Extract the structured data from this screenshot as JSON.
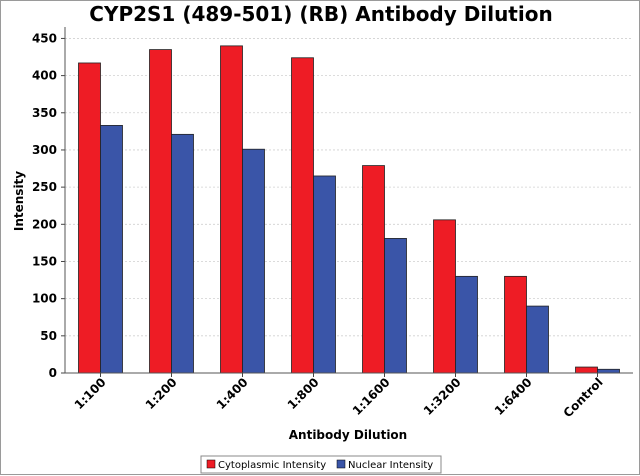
{
  "chart_data": {
    "type": "bar",
    "title": "CYP2S1 (489-501) (RB) Antibody Dilution",
    "xlabel": "Antibody Dilution",
    "ylabel": "Intensity",
    "ylim": [
      0,
      460
    ],
    "yticks": [
      0,
      50,
      100,
      150,
      200,
      250,
      300,
      350,
      400,
      450
    ],
    "grid": true,
    "legend_position": "bottom",
    "categories": [
      "1:100",
      "1:200",
      "1:400",
      "1:800",
      "1:1600",
      "1:3200",
      "1:6400",
      "Control"
    ],
    "series": [
      {
        "name": "Cytoplasmic Intensity",
        "color": "#ee1c25",
        "values": [
          417,
          435,
          440,
          424,
          279,
          206,
          130,
          8
        ]
      },
      {
        "name": "Nuclear Intensity",
        "color": "#3a55a8",
        "values": [
          333,
          321,
          301,
          265,
          181,
          130,
          90,
          5
        ]
      }
    ]
  }
}
